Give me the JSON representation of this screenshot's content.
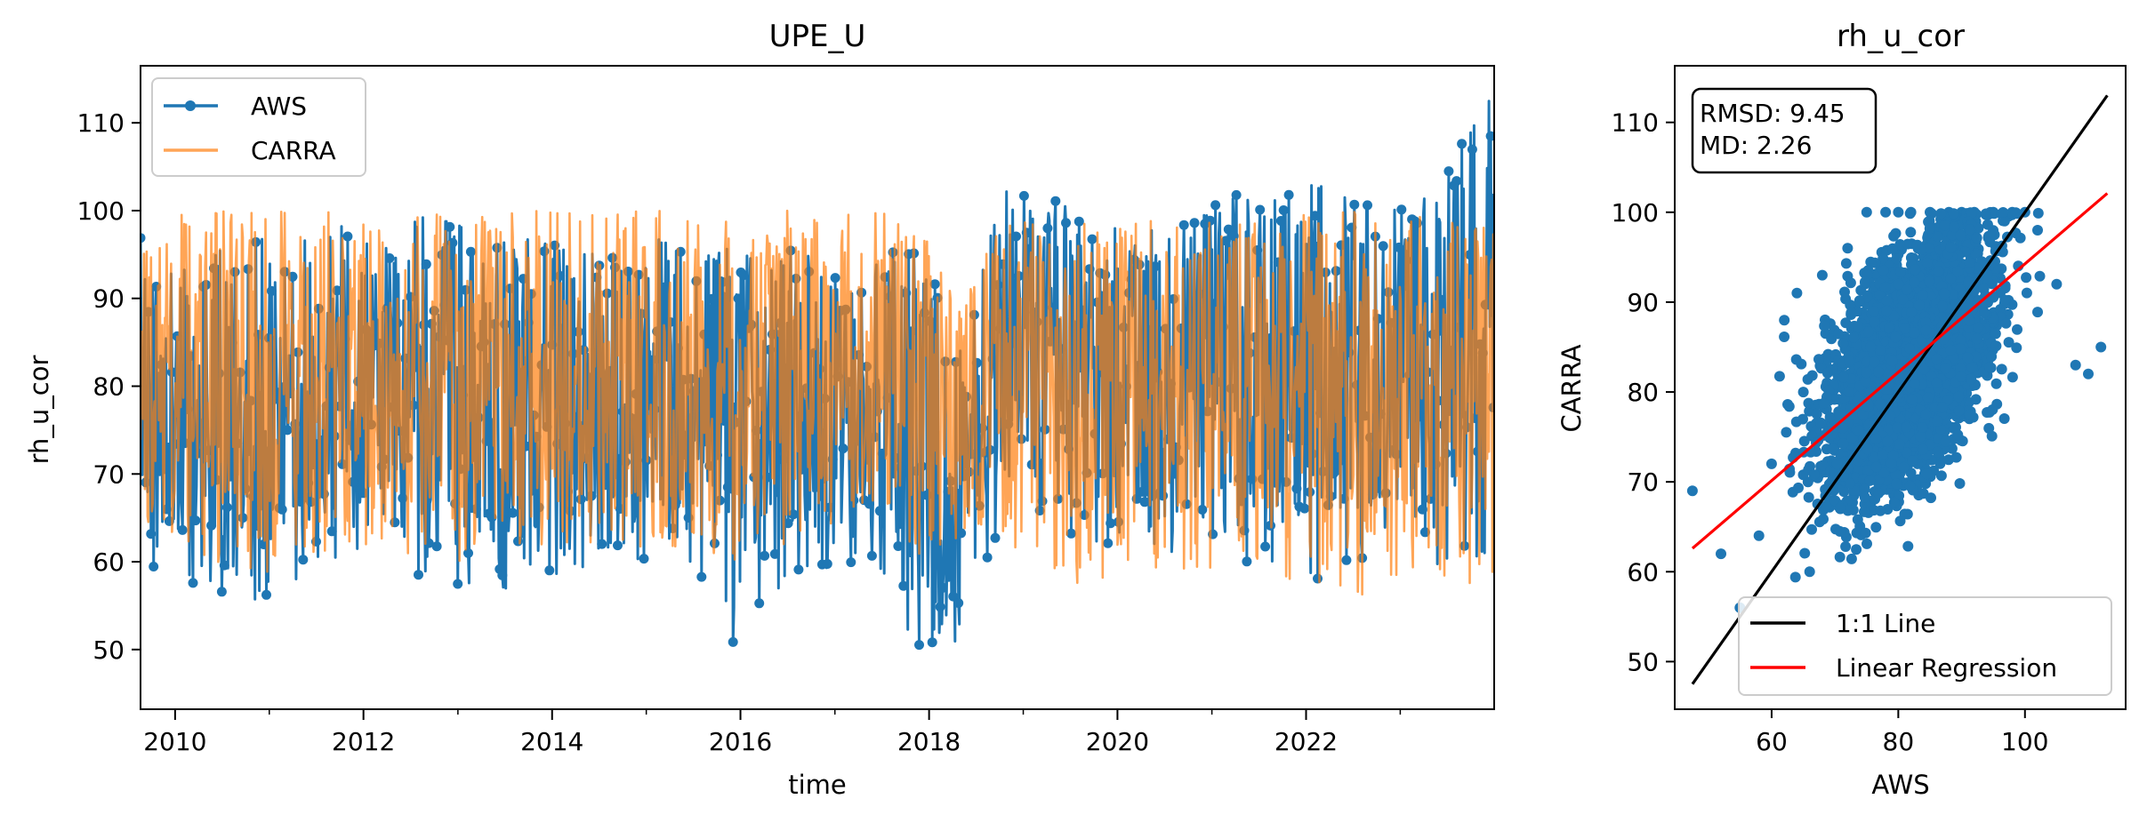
{
  "chart_data": [
    {
      "type": "line",
      "title": "UPE_U",
      "xlabel": "time",
      "ylabel": "rh_u_cor",
      "xlim": [
        "2009-08-20",
        "2023-12-31"
      ],
      "ylim": [
        43.2,
        116.5
      ],
      "x_ticks": [
        "2010",
        "2012",
        "2014",
        "2016",
        "2018",
        "2020",
        "2022"
      ],
      "y_ticks": [
        50,
        60,
        70,
        80,
        90,
        100,
        110
      ],
      "legend": {
        "placement": "upper left",
        "entries": [
          "AWS",
          "CARRA"
        ]
      },
      "x": [
        "2009-09",
        "2010-01",
        "2010-06",
        "2010-11",
        "2011-04",
        "2011-09",
        "2012-02",
        "2012-07",
        "2012-12",
        "2013-05",
        "2013-10",
        "2014-03",
        "2014-08",
        "2015-01",
        "2015-06",
        "2015-11",
        "2016-04",
        "2016-09",
        "2017-02",
        "2017-07",
        "2017-12",
        "2018-05",
        "2018-10",
        "2019-03",
        "2019-08",
        "2020-01",
        "2020-06",
        "2020-11",
        "2021-04",
        "2021-09",
        "2022-02",
        "2022-07",
        "2022-12",
        "2023-05",
        "2023-10"
      ],
      "series": [
        {
          "name": "AWS",
          "color": "#1f77b4",
          "marker": "circle",
          "upper": [
            97,
            95,
            96,
            98,
            96,
            99,
            97,
            100,
            101,
            98,
            97,
            96,
            95,
            97,
            96,
            96,
            95,
            96,
            97,
            96,
            95,
            85,
            103,
            102,
            100,
            98,
            100,
            101,
            102,
            103,
            104,
            102,
            101,
            102,
            113
          ],
          "lower": [
            60,
            57,
            56,
            55,
            58,
            60,
            60,
            58,
            57,
            56,
            58,
            59,
            60,
            58,
            60,
            50,
            56,
            57,
            60,
            58,
            48,
            50,
            64,
            65,
            62,
            60,
            60,
            63,
            60,
            60,
            58,
            58,
            58,
            56,
            60
          ]
        },
        {
          "name": "CARRA",
          "color": "#ff7f0e",
          "upper": [
            100,
            100,
            100,
            100,
            100,
            100,
            100,
            100,
            100,
            100,
            100,
            100,
            100,
            100,
            100,
            100,
            100,
            100,
            100,
            100,
            98,
            92,
            99,
            99,
            99,
            99,
            99,
            99,
            100,
            99,
            100,
            100,
            100,
            99,
            99
          ],
          "lower": [
            63,
            62,
            60,
            58,
            60,
            61,
            61,
            60,
            60,
            60,
            61,
            61,
            62,
            61,
            62,
            60,
            61,
            60,
            62,
            62,
            60,
            62,
            62,
            60,
            57,
            57,
            59,
            59,
            58,
            58,
            56,
            54,
            58,
            58,
            57
          ]
        }
      ]
    },
    {
      "type": "scatter",
      "title": "rh_u_cor",
      "xlabel": "AWS",
      "ylabel": "CARRA",
      "xlim": [
        44.7,
        115.9
      ],
      "ylim": [
        44.7,
        116.3
      ],
      "x_ticks": [
        60,
        80,
        100
      ],
      "y_ticks": [
        50,
        60,
        70,
        80,
        90,
        100,
        110
      ],
      "annotation": [
        "RMSD: 9.45",
        "MD: 2.26"
      ],
      "point_color": "#1f77b4",
      "series": [
        {
          "name": "AWS vs CARRA",
          "x": [
            47.5,
            52,
            55,
            58,
            60,
            62,
            64,
            65,
            66,
            68,
            70,
            72,
            75,
            78,
            80,
            82,
            85,
            88,
            90,
            92,
            95,
            98,
            100,
            102,
            105,
            108,
            110,
            112
          ],
          "y": [
            69,
            62,
            56,
            64,
            72,
            88,
            91,
            80,
            60,
            93,
            74,
            96,
            100,
            100,
            100,
            100,
            100,
            100,
            100,
            100,
            100,
            100,
            100,
            98,
            92,
            83,
            82,
            85
          ]
        }
      ],
      "lines": [
        {
          "name": "1:1 Line",
          "color": "#000000",
          "x": [
            47.5,
            113
          ],
          "y": [
            47.5,
            113
          ]
        },
        {
          "name": "Linear Regression",
          "color": "#ff0000",
          "x": [
            47.5,
            113
          ],
          "y": [
            62.6,
            102.1
          ]
        }
      ],
      "legend": {
        "placement": "lower right",
        "entries": [
          "1:1 Line",
          "Linear Regression"
        ]
      }
    }
  ]
}
